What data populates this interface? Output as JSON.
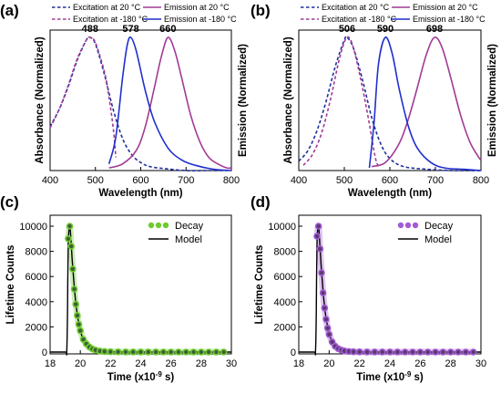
{
  "chart_data": [
    {
      "panel_label": "(a)",
      "type": "line",
      "xlabel": "Wavelength (nm)",
      "ylabel": "Absorbance (Normalized)",
      "ylabel_right": "Emission (Normalized)",
      "xlim": [
        400,
        800
      ],
      "xticks": [
        "400",
        "500",
        "600",
        "700",
        "800"
      ],
      "peak_labels": [
        {
          "x": 488,
          "text": "488"
        },
        {
          "x": 578,
          "text": "578"
        },
        {
          "x": 660,
          "text": "660"
        }
      ],
      "legend": [
        {
          "label": "Excitation at 20 °C",
          "color": "#1f2f9c",
          "dash": "dashed"
        },
        {
          "label": "Excitation at -180 °C",
          "color": "#a23a96",
          "dash": "dashed"
        },
        {
          "label": "Emission at 20 °C",
          "color": "#a23a96",
          "dash": "solid"
        },
        {
          "label": "Emission at -180 °C",
          "color": "#1f2fcc",
          "dash": "solid"
        }
      ],
      "series": [
        {
          "name": "Excitation at 20 °C",
          "peak": 488,
          "x": [
            400,
            420,
            440,
            460,
            480,
            488,
            500,
            520,
            540,
            560,
            580,
            600,
            620,
            650,
            700,
            750,
            800
          ],
          "values": [
            0.33,
            0.46,
            0.63,
            0.83,
            0.98,
            1.0,
            0.95,
            0.72,
            0.45,
            0.24,
            0.12,
            0.06,
            0.03,
            0.015,
            0.0,
            0.0,
            0.0
          ]
        },
        {
          "name": "Excitation at -180 °C",
          "peak": 488,
          "x": [
            400,
            420,
            440,
            460,
            480,
            488,
            500,
            520,
            530,
            540,
            545
          ],
          "values": [
            0.32,
            0.46,
            0.64,
            0.84,
            0.98,
            1.0,
            0.96,
            0.74,
            0.55,
            0.3,
            0.1
          ]
        },
        {
          "name": "Emission at 20 °C",
          "peak": 660,
          "x": [
            530,
            560,
            590,
            610,
            630,
            645,
            660,
            675,
            690,
            710,
            730,
            750,
            770,
            790,
            800
          ],
          "values": [
            0.02,
            0.05,
            0.15,
            0.33,
            0.62,
            0.85,
            1.0,
            0.9,
            0.7,
            0.42,
            0.22,
            0.1,
            0.05,
            0.02,
            0.02
          ]
        },
        {
          "name": "Emission at -180 °C",
          "peak": 578,
          "x": [
            530,
            545,
            560,
            570,
            578,
            590,
            610,
            630,
            660,
            690,
            720,
            760,
            800
          ],
          "values": [
            0.05,
            0.25,
            0.7,
            0.94,
            1.0,
            0.9,
            0.6,
            0.37,
            0.17,
            0.08,
            0.04,
            0.01,
            0.0
          ]
        }
      ]
    },
    {
      "panel_label": "(b)",
      "type": "line",
      "xlabel": "Wavelength (nm)",
      "ylabel": "Absorbance (Normalized)",
      "ylabel_right": "Emission (Normalized)",
      "xlim": [
        400,
        800
      ],
      "xticks": [
        "400",
        "500",
        "600",
        "700",
        "800"
      ],
      "peak_labels": [
        {
          "x": 506,
          "text": "506"
        },
        {
          "x": 590,
          "text": "590"
        },
        {
          "x": 698,
          "text": "698"
        }
      ],
      "legend": [
        {
          "label": "Excitation at 20 °C",
          "color": "#1f2f9c",
          "dash": "dashed"
        },
        {
          "label": "Excitation at -180 °C",
          "color": "#a23a96",
          "dash": "dashed"
        },
        {
          "label": "Emission at 20 °C",
          "color": "#a23a96",
          "dash": "solid"
        },
        {
          "label": "Emission at -180 °C",
          "color": "#1f2fcc",
          "dash": "solid"
        }
      ],
      "series": [
        {
          "name": "Excitation at 20 °C",
          "peak": 506,
          "x": [
            400,
            420,
            440,
            460,
            480,
            500,
            506,
            520,
            540,
            560,
            580,
            600,
            630,
            680,
            740,
            800
          ],
          "values": [
            0.07,
            0.15,
            0.3,
            0.52,
            0.78,
            0.98,
            1.0,
            0.92,
            0.68,
            0.4,
            0.2,
            0.09,
            0.03,
            0.01,
            0.0,
            0.0
          ]
        },
        {
          "name": "Excitation at -180 °C",
          "peak": 506,
          "x": [
            410,
            430,
            450,
            470,
            490,
            506,
            520,
            540,
            555,
            565,
            572,
            580
          ],
          "values": [
            0.04,
            0.12,
            0.28,
            0.54,
            0.85,
            1.0,
            0.92,
            0.62,
            0.35,
            0.15,
            0.05,
            0.03
          ]
        },
        {
          "name": "Emission at 20 °C",
          "peak": 698,
          "x": [
            560,
            590,
            620,
            640,
            660,
            680,
            698,
            715,
            735,
            755,
            775,
            795,
            800
          ],
          "values": [
            0.03,
            0.06,
            0.2,
            0.38,
            0.62,
            0.87,
            1.0,
            0.92,
            0.68,
            0.42,
            0.22,
            0.1,
            0.08
          ]
        },
        {
          "name": "Emission at -180 °C",
          "peak": 590,
          "x": [
            555,
            565,
            575,
            590,
            605,
            620,
            640,
            660,
            690,
            720,
            760,
            800
          ],
          "values": [
            0.02,
            0.35,
            0.8,
            1.0,
            0.88,
            0.62,
            0.34,
            0.17,
            0.06,
            0.02,
            0.01,
            0.0
          ]
        }
      ]
    },
    {
      "panel_label": "(c)",
      "type": "scatter",
      "xlabel": "Time (x10",
      "xlabel_sup": "-9",
      "xlabel_tail": " s)",
      "ylabel": "Lifetime Counts",
      "xlim": [
        18,
        30
      ],
      "ylim": [
        0,
        10000
      ],
      "xticks": [
        "18",
        "20",
        "22",
        "24",
        "26",
        "28",
        "30"
      ],
      "yticks": [
        "0",
        "2000",
        "4000",
        "6000",
        "8000",
        "10000"
      ],
      "legend": [
        {
          "label": "Decay",
          "color": "#6dcc2e",
          "marker": "circle"
        },
        {
          "label": "Model",
          "color": "#000000",
          "marker": "line"
        }
      ],
      "series": [
        {
          "name": "Decay",
          "color": "#6dcc2e",
          "marker_color": "#3f5d3a",
          "x": [
            19.2,
            19.3,
            19.4,
            19.5,
            19.6,
            19.7,
            19.8,
            19.9,
            20.0,
            20.2,
            20.4,
            20.6,
            20.8,
            21.0,
            21.3,
            21.6,
            22.0,
            22.5,
            23.0,
            23.5,
            24.0,
            24.5,
            25.0,
            25.5,
            26.0,
            26.5,
            27.0,
            27.5,
            28.0,
            28.5,
            29.0,
            29.5
          ],
          "values": [
            9000,
            10000,
            8400,
            6600,
            5000,
            3800,
            2900,
            2200,
            1700,
            1000,
            650,
            400,
            250,
            160,
            80,
            40,
            20,
            10,
            5,
            3,
            2,
            1,
            1,
            0,
            0,
            0,
            0,
            0,
            0,
            0,
            0,
            0
          ]
        },
        {
          "name": "Model",
          "color": "#000000",
          "x": [
            18.0,
            19.0,
            19.1,
            19.15,
            19.2,
            19.3,
            19.4,
            19.5,
            19.7,
            19.9,
            20.1,
            20.4,
            20.8,
            21.3,
            22.0,
            23.0,
            25.0,
            30.0
          ],
          "values": [
            0,
            0,
            0,
            3000,
            8500,
            10000,
            8500,
            6700,
            3900,
            2300,
            1300,
            650,
            260,
            90,
            20,
            3,
            0,
            0
          ]
        }
      ]
    },
    {
      "panel_label": "(d)",
      "type": "scatter",
      "xlabel": "Time (x10",
      "xlabel_sup": "-9",
      "xlabel_tail": " s)",
      "ylabel": "Lifetime Counts",
      "xlim": [
        18,
        30
      ],
      "ylim": [
        0,
        10000
      ],
      "xticks": [
        "18",
        "20",
        "22",
        "24",
        "26",
        "28",
        "30"
      ],
      "yticks": [
        "0",
        "2000",
        "4000",
        "6000",
        "8000",
        "10000"
      ],
      "legend": [
        {
          "label": "Decay",
          "color": "#a35ad6",
          "marker": "circle"
        },
        {
          "label": "Model",
          "color": "#000000",
          "marker": "line"
        }
      ],
      "series": [
        {
          "name": "Decay",
          "color": "#a35ad6",
          "marker_color": "#5a3a6e",
          "x": [
            19.2,
            19.3,
            19.4,
            19.5,
            19.6,
            19.7,
            19.8,
            19.9,
            20.0,
            20.2,
            20.4,
            20.6,
            20.8,
            21.0,
            21.3,
            21.6,
            22.0,
            22.5,
            23.0,
            23.5,
            24.0,
            24.5,
            25.0,
            25.5,
            26.0,
            26.5,
            27.0,
            27.5,
            28.0,
            28.5,
            29.0,
            29.5
          ],
          "values": [
            9200,
            10000,
            8200,
            6300,
            4700,
            3500,
            2600,
            1900,
            1400,
            800,
            460,
            270,
            160,
            90,
            45,
            20,
            10,
            5,
            3,
            2,
            1,
            1,
            0,
            0,
            0,
            0,
            0,
            0,
            0,
            0,
            0,
            0
          ]
        },
        {
          "name": "Model",
          "color": "#000000",
          "x": [
            18.0,
            19.0,
            19.1,
            19.15,
            19.2,
            19.3,
            19.4,
            19.5,
            19.7,
            19.9,
            20.1,
            20.4,
            20.8,
            21.3,
            22.0,
            23.0,
            25.0,
            30.0
          ],
          "values": [
            0,
            0,
            0,
            3000,
            8600,
            10000,
            8300,
            6400,
            3600,
            2000,
            1100,
            520,
            190,
            60,
            12,
            2,
            0,
            0
          ]
        }
      ]
    }
  ]
}
